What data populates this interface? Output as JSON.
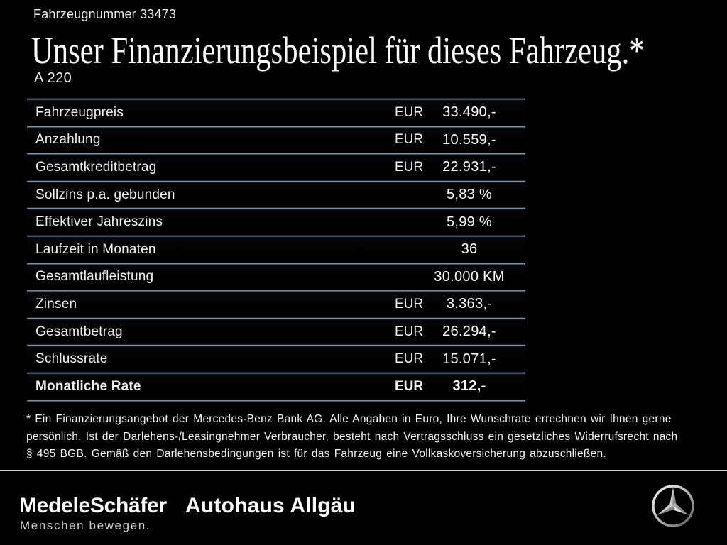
{
  "header": {
    "vehicle_number": "Fahrzeugnummer 33473",
    "title": "Unser Finanzierungsbeispiel für dieses Fahrzeug.*",
    "model": "A 220"
  },
  "financing_table": {
    "rows": [
      {
        "label": "Fahrzeugpreis",
        "currency": "EUR",
        "value": "33.490,-",
        "bold": false
      },
      {
        "label": "Anzahlung",
        "currency": "EUR",
        "value": "10.559,-",
        "bold": false
      },
      {
        "label": "Gesamtkreditbetrag",
        "currency": "EUR",
        "value": "22.931,-",
        "bold": false
      },
      {
        "label": "Sollzins p.a. gebunden",
        "currency": "",
        "value": "5,83 %",
        "bold": false
      },
      {
        "label": "Effektiver Jahreszins",
        "currency": "",
        "value": "5,99 %",
        "bold": false
      },
      {
        "label": "Laufzeit in Monaten",
        "currency": "",
        "value": "36",
        "bold": false
      },
      {
        "label": "Gesamtlaufleistung",
        "currency": "",
        "value": "30.000 KM",
        "bold": false
      },
      {
        "label": "Zinsen",
        "currency": "EUR",
        "value": "3.363,-",
        "bold": false
      },
      {
        "label": "Gesamtbetrag",
        "currency": "EUR",
        "value": "26.294,-",
        "bold": false
      },
      {
        "label": "Schlussrate",
        "currency": "EUR",
        "value": "15.071,-",
        "bold": false
      },
      {
        "label": "Monatliche Rate",
        "currency": "EUR",
        "value": "312,-",
        "bold": true
      }
    ]
  },
  "footnote": {
    "lines": [
      "* Ein Finanzierungsangebot der Mercedes-Benz Bank AG. Alle Angaben in Euro, Ihre Wunschrate errechnen wir Ihnen gerne",
      "persönlich. Ist der Darlehens-/Leasingnehmer Verbraucher, besteht nach Vertragsschluss ein gesetzliches Widerrufsrecht nach",
      "§ 495 BGB. Gemäß den Darlehensbedingungen ist für das Fahrzeug eine Vollkaskoversicherung abzuschließen."
    ]
  },
  "footer": {
    "dealer_primary": "MedeleSchäfer",
    "dealer_tagline": "Menschen bewegen.",
    "dealer_secondary": "Autohaus Allgäu",
    "brand_icon": "mercedes-star"
  },
  "colors": {
    "background": "#000000",
    "text": "#f2f2f2",
    "separator_highlight": "#a7b1bd",
    "separator_shadow": "#4e617a",
    "footer_rule": "#d2d2d2",
    "star_light": "#f2f2f2",
    "star_dark": "#6e6e6e"
  }
}
